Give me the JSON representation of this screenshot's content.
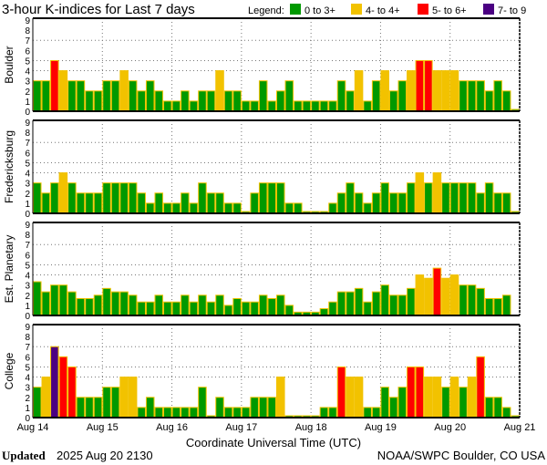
{
  "chart_data": {
    "type": "bar",
    "title": "3-hour K-indices for Last 7 days",
    "legend": {
      "label": "Legend:",
      "placement": "top-right",
      "entries": [
        {
          "label": "0 to 3+",
          "color": "#009900"
        },
        {
          "label": "4- to 4+",
          "color": "#f2c200"
        },
        {
          "label": "5- to 6+",
          "color": "#ff0000"
        },
        {
          "label": "7- to 9",
          "color": "#4b0082"
        }
      ]
    },
    "xlabel": "Coordinate Universal Time (UTC)",
    "x_ticks": [
      "Aug 14",
      "Aug 15",
      "Aug 16",
      "Aug 17",
      "Aug 18",
      "Aug 19",
      "Aug 20",
      "Aug 21"
    ],
    "bars_per_day": 8,
    "ylim": [
      0,
      9
    ],
    "y_ticks": [
      "0",
      "1",
      "2",
      "3",
      "4",
      "5",
      "6",
      "7",
      "8",
      "9"
    ],
    "y_gridlines": [
      4,
      5,
      7
    ],
    "outline_color": "#f2c200",
    "panels": [
      {
        "name": "Boulder",
        "values": [
          3,
          3,
          5,
          4,
          3,
          3,
          2,
          2,
          3,
          3,
          4,
          3,
          2,
          3,
          2,
          1,
          1,
          2,
          1,
          2,
          2,
          4,
          2,
          2,
          1,
          1,
          3,
          1,
          2,
          3,
          1,
          1,
          1,
          1,
          1,
          3,
          2,
          4,
          1,
          3,
          4,
          2,
          3,
          4,
          5,
          5,
          4,
          4,
          4,
          3,
          3,
          3,
          2,
          3,
          2,
          0
        ]
      },
      {
        "name": "Fredericksburg",
        "values": [
          3,
          2,
          3,
          4,
          3,
          2,
          2,
          2,
          3,
          3,
          3,
          3,
          2,
          1,
          2,
          1,
          1,
          2,
          1,
          3,
          2,
          2,
          1,
          1,
          0,
          2,
          3,
          3,
          3,
          1,
          1,
          0,
          0,
          0,
          1,
          2,
          3,
          2,
          1,
          2,
          3,
          2,
          2,
          3,
          4,
          3,
          4,
          3,
          3,
          3,
          3,
          2,
          3,
          2,
          2,
          0
        ]
      },
      {
        "name": "Est. Planetary",
        "values": [
          3.33,
          2.33,
          3,
          3,
          2.33,
          1.67,
          1.67,
          2,
          2.67,
          2.33,
          2.33,
          2,
          1.33,
          1.33,
          2,
          1.33,
          1.33,
          2,
          1.33,
          2,
          1.33,
          2,
          1,
          1.67,
          1.33,
          1.33,
          2,
          1.67,
          2,
          1,
          0.33,
          0.33,
          0.33,
          0.67,
          1.33,
          2.33,
          2.33,
          2.67,
          1.33,
          2.33,
          3,
          2,
          2,
          2.67,
          4,
          3.67,
          4.67,
          3.67,
          4,
          3,
          3,
          2.67,
          1.67,
          1.67,
          2,
          null
        ]
      },
      {
        "name": "College",
        "values": [
          3,
          4,
          7,
          6,
          5,
          2,
          2,
          2,
          3,
          3,
          4,
          4,
          1,
          2,
          1,
          1,
          1,
          1,
          1,
          3,
          0,
          2,
          1,
          1,
          1,
          2,
          2,
          2,
          4,
          0,
          0,
          0,
          0,
          1,
          1,
          5,
          4,
          4,
          1,
          1,
          3,
          2,
          3,
          5,
          5,
          4,
          4,
          3,
          4,
          3,
          4,
          6,
          2,
          2,
          1,
          0
        ]
      }
    ]
  },
  "footer": {
    "updated_label": "Updated",
    "updated_value": "2025 Aug 20 2130",
    "credit": "NOAA/SWPC Boulder, CO USA"
  }
}
